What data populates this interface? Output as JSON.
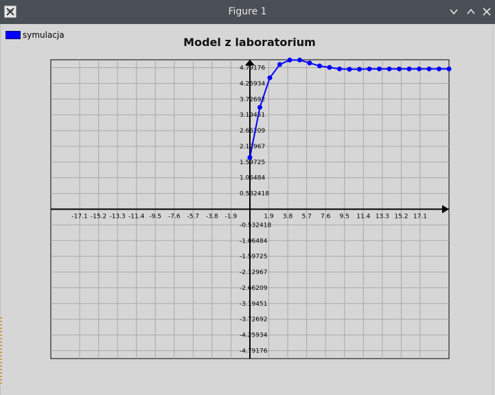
{
  "window": {
    "title": "Figure 1",
    "icon": "octave-logo-icon",
    "controls": [
      "chevron-down-icon",
      "chevron-up-icon",
      "close-icon"
    ]
  },
  "colors": {
    "titlebar": "#4a4f55",
    "background": "#d6d6d6",
    "series": "#0000ff",
    "grid": "#a8a8a8",
    "axis": "#000000"
  },
  "legend": {
    "label": "symulacja",
    "position": "top-left"
  },
  "chart_data": {
    "type": "line",
    "title": "Model z laboratorium",
    "xlabel": "",
    "ylabel": "",
    "xlim": [
      -20.0,
      20.0
    ],
    "ylim": [
      -5.06,
      5.06
    ],
    "grid": true,
    "x_ticks": [
      "-17.1",
      "-15.2",
      "-13.3",
      "-11.4",
      "-9.5",
      "-7.6",
      "-5.7",
      "-3.8",
      "-1.9",
      "1.9",
      "3.8",
      "5.7",
      "7.6",
      "9.5",
      "11.4",
      "13.3",
      "15.2",
      "17.1"
    ],
    "x_tick_values": [
      -17.1,
      -15.2,
      -13.3,
      -11.4,
      -9.5,
      -7.6,
      -5.7,
      -3.8,
      -1.9,
      1.9,
      3.8,
      5.7,
      7.6,
      9.5,
      11.4,
      13.3,
      15.2,
      17.1
    ],
    "y_ticks": [
      "4.79176",
      "4.25934",
      "3.72692",
      "3.19451",
      "2.66209",
      "2.12967",
      "1.59725",
      "1.06484",
      "0.532418",
      "-0.532418",
      "-1.06484",
      "-1.59725",
      "-2.12967",
      "-2.66209",
      "-3.19451",
      "-3.72692",
      "-4.25934",
      "-4.79176"
    ],
    "y_tick_values": [
      4.79176,
      4.25934,
      3.72692,
      3.19451,
      2.66209,
      2.12967,
      1.59725,
      1.06484,
      0.532418,
      -0.532418,
      -1.06484,
      -1.59725,
      -2.12967,
      -2.66209,
      -3.19451,
      -3.72692,
      -4.25934,
      -4.79176
    ],
    "series": [
      {
        "name": "symulacja",
        "marker": "circle",
        "x": [
          0,
          1,
          2,
          3,
          4,
          5,
          6,
          7,
          8,
          9,
          10,
          11,
          12,
          13,
          14,
          15,
          16,
          17,
          18,
          19,
          20
        ],
        "y": [
          1.75,
          3.45,
          4.45,
          4.9,
          5.05,
          5.05,
          4.95,
          4.85,
          4.8,
          4.75,
          4.74,
          4.74,
          4.75,
          4.75,
          4.75,
          4.75,
          4.75,
          4.75,
          4.75,
          4.75,
          4.75
        ]
      }
    ]
  }
}
